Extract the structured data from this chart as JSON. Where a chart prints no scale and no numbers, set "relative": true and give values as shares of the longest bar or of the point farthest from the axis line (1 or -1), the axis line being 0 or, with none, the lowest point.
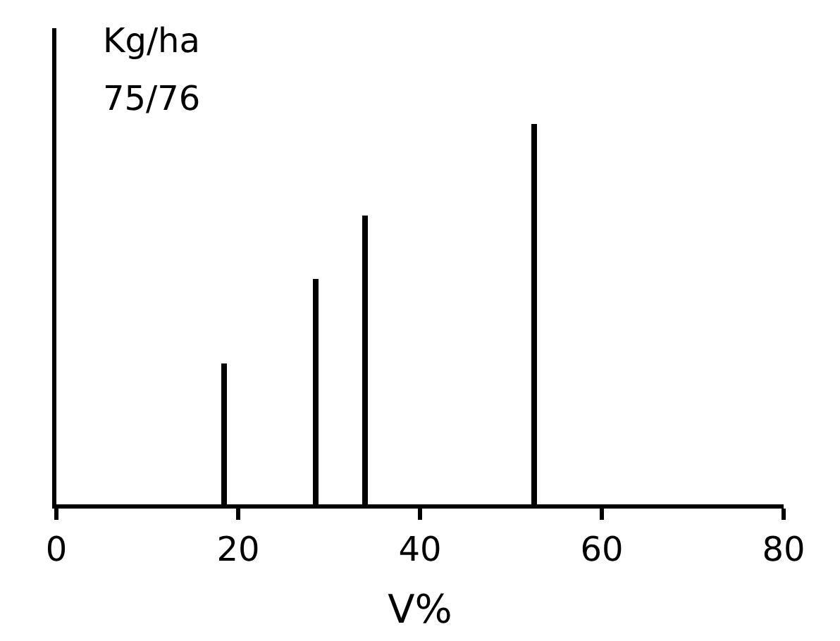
{
  "chart_data": {
    "type": "bar",
    "title": "75/76",
    "ylabel": "Kg/ha",
    "xlabel": "V%",
    "x": [
      18.5,
      28.5,
      34,
      52.5
    ],
    "values": [
      0.37,
      0.59,
      0.76,
      1
    ],
    "color": "#000000",
    "relative": true,
    "xlim": [
      0,
      80
    ],
    "xticks": [
      0,
      20,
      40,
      60,
      80
    ],
    "legend": false
  }
}
